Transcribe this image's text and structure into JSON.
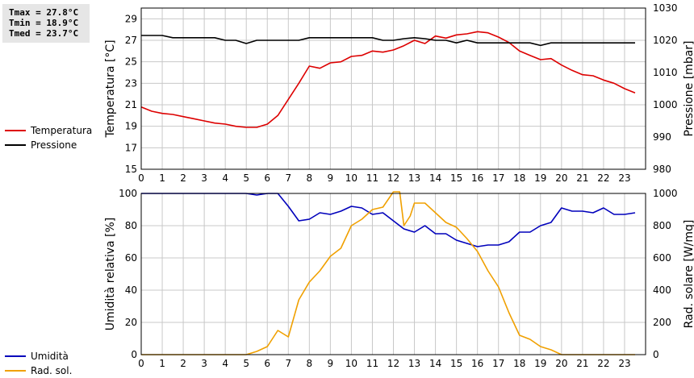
{
  "stats": {
    "tmax": "Tmax = 27.8°C",
    "tmin": "Tmin = 18.9°C",
    "tmed": "Tmed = 23.7°C"
  },
  "colors": {
    "temperatura": "#dd0000",
    "pressione": "#000000",
    "umidita": "#0000bb",
    "radsol": "#f0a000",
    "grid": "#c8c8c8"
  },
  "chart_data": [
    {
      "type": "line",
      "x_ticks": [
        "0",
        "1",
        "2",
        "3",
        "4",
        "5",
        "6",
        "7",
        "8",
        "9",
        "10",
        "11",
        "12",
        "13",
        "14",
        "15",
        "16",
        "17",
        "18",
        "19",
        "20",
        "21",
        "22",
        "23"
      ],
      "ylabel_left": "Temperatura [°C]",
      "ylabel_right": "Pressione [mbar]",
      "y_left_ticks": [
        "15",
        "17",
        "19",
        "21",
        "23",
        "25",
        "27",
        "29"
      ],
      "y_right_ticks": [
        "980",
        "990",
        "1000",
        "1010",
        "1020",
        "1030"
      ],
      "ylim_left": [
        15,
        30
      ],
      "ylim_right": [
        980,
        1030
      ],
      "xlim": [
        0,
        24
      ],
      "grid": true,
      "legend": [
        "Temperatura",
        "Pressione"
      ],
      "series": [
        {
          "name": "Temperatura",
          "axis": "left",
          "x": [
            0,
            0.5,
            1,
            1.5,
            2,
            2.5,
            3,
            3.5,
            4,
            4.5,
            5,
            5.5,
            6,
            6.5,
            7,
            7.5,
            8,
            8.5,
            9,
            9.5,
            10,
            10.5,
            11,
            11.5,
            12,
            12.5,
            13,
            13.5,
            14,
            14.5,
            15,
            15.5,
            16,
            16.5,
            17,
            17.5,
            18,
            18.5,
            19,
            19.5,
            20,
            20.5,
            21,
            21.5,
            22,
            22.5,
            23,
            23.5
          ],
          "y": [
            20.8,
            20.4,
            20.2,
            20.1,
            19.9,
            19.7,
            19.5,
            19.3,
            19.2,
            19.0,
            18.9,
            18.9,
            19.2,
            20.0,
            21.5,
            23.0,
            24.6,
            24.4,
            24.9,
            25.0,
            25.5,
            25.6,
            26.0,
            25.9,
            26.1,
            26.5,
            27.0,
            26.7,
            27.4,
            27.2,
            27.5,
            27.6,
            27.8,
            27.7,
            27.3,
            26.8,
            26.0,
            25.6,
            25.2,
            25.3,
            24.7,
            24.2,
            23.8,
            23.7,
            23.3,
            23.0,
            22.5,
            22.1
          ]
        },
        {
          "name": "Pressione",
          "axis": "right",
          "x": [
            0,
            0.5,
            1,
            1.5,
            2,
            2.5,
            3,
            3.5,
            4,
            4.5,
            5,
            5.5,
            6,
            6.5,
            7,
            7.5,
            8,
            8.5,
            9,
            9.5,
            10,
            10.5,
            11,
            11.5,
            12,
            12.5,
            13,
            13.5,
            14,
            14.5,
            15,
            15.5,
            16,
            16.5,
            17,
            17.5,
            18,
            18.5,
            19,
            19.5,
            20,
            20.5,
            21,
            21.5,
            22,
            22.5,
            23,
            23.5
          ],
          "y": [
            1021.5,
            1021.5,
            1021.5,
            1020.8,
            1020.8,
            1020.8,
            1020.8,
            1020.8,
            1020,
            1020,
            1019,
            1020,
            1020,
            1020,
            1020,
            1020,
            1020.8,
            1020.8,
            1020.8,
            1020.8,
            1020.8,
            1020.8,
            1020.8,
            1020,
            1020,
            1020.5,
            1020.8,
            1020.5,
            1020,
            1020,
            1019.2,
            1020,
            1019.2,
            1019.2,
            1019.2,
            1019.2,
            1019.2,
            1019.2,
            1018.4,
            1019.2,
            1019.2,
            1019.2,
            1019.2,
            1019.2,
            1019.2,
            1019.2,
            1019.2,
            1019.2
          ]
        }
      ]
    },
    {
      "type": "line",
      "x_ticks": [
        "0",
        "1",
        "2",
        "3",
        "4",
        "5",
        "6",
        "7",
        "8",
        "9",
        "10",
        "11",
        "12",
        "13",
        "14",
        "15",
        "16",
        "17",
        "18",
        "19",
        "20",
        "21",
        "22",
        "23"
      ],
      "ylabel_left": "Umidità relativa [%]",
      "ylabel_right": "Rad. solare [W/mq]",
      "y_left_ticks": [
        "0",
        "20",
        "40",
        "60",
        "80",
        "100"
      ],
      "y_right_ticks": [
        "0",
        "200",
        "400",
        "600",
        "800",
        "1000"
      ],
      "ylim_left": [
        0,
        100
      ],
      "ylim_right": [
        0,
        1000
      ],
      "xlim": [
        0,
        24
      ],
      "grid": true,
      "legend": [
        "Umidità",
        "Rad. sol."
      ],
      "series": [
        {
          "name": "Umidità",
          "axis": "left",
          "x": [
            0,
            0.5,
            1,
            1.5,
            2,
            2.5,
            3,
            3.5,
            4,
            4.5,
            5,
            5.5,
            6,
            6.5,
            7,
            7.5,
            8,
            8.5,
            9,
            9.5,
            10,
            10.5,
            11,
            11.5,
            12,
            12.5,
            13,
            13.5,
            14,
            14.5,
            15,
            15.5,
            16,
            16.5,
            17,
            17.5,
            18,
            18.5,
            19,
            19.5,
            20,
            20.5,
            21,
            21.5,
            22,
            22.5,
            23,
            23.5
          ],
          "y": [
            100,
            100,
            100,
            100,
            100,
            100,
            100,
            100,
            100,
            100,
            100,
            99,
            100,
            100,
            92,
            83,
            84,
            88,
            87,
            89,
            92,
            91,
            87,
            88,
            83,
            78,
            76,
            80,
            75,
            75,
            71,
            69,
            67,
            68,
            68,
            70,
            76,
            76,
            80,
            82,
            91,
            89,
            89,
            88,
            91,
            87,
            87,
            88
          ]
        },
        {
          "name": "Rad. sol.",
          "axis": "right",
          "x": [
            0,
            0.5,
            1,
            1.5,
            2,
            2.5,
            3,
            3.5,
            4,
            4.5,
            5,
            5.5,
            6,
            6.5,
            7,
            7.5,
            8,
            8.5,
            9,
            9.5,
            10,
            10.5,
            11,
            11.5,
            12,
            12.3,
            12.5,
            12.8,
            13,
            13.5,
            14,
            14.5,
            15,
            15.5,
            16,
            16.5,
            17,
            17.5,
            18,
            18.5,
            19,
            19.5,
            20,
            20.5,
            21,
            21.5,
            22,
            22.5,
            23,
            23.5
          ],
          "y": [
            0,
            0,
            0,
            0,
            0,
            0,
            0,
            0,
            0,
            0,
            0,
            20,
            50,
            150,
            110,
            340,
            450,
            520,
            610,
            660,
            800,
            840,
            900,
            915,
            1020,
            1020,
            800,
            860,
            940,
            940,
            880,
            820,
            790,
            720,
            640,
            520,
            420,
            260,
            120,
            95,
            50,
            30,
            0,
            0,
            0,
            0,
            0,
            0,
            0,
            0
          ]
        }
      ]
    }
  ]
}
